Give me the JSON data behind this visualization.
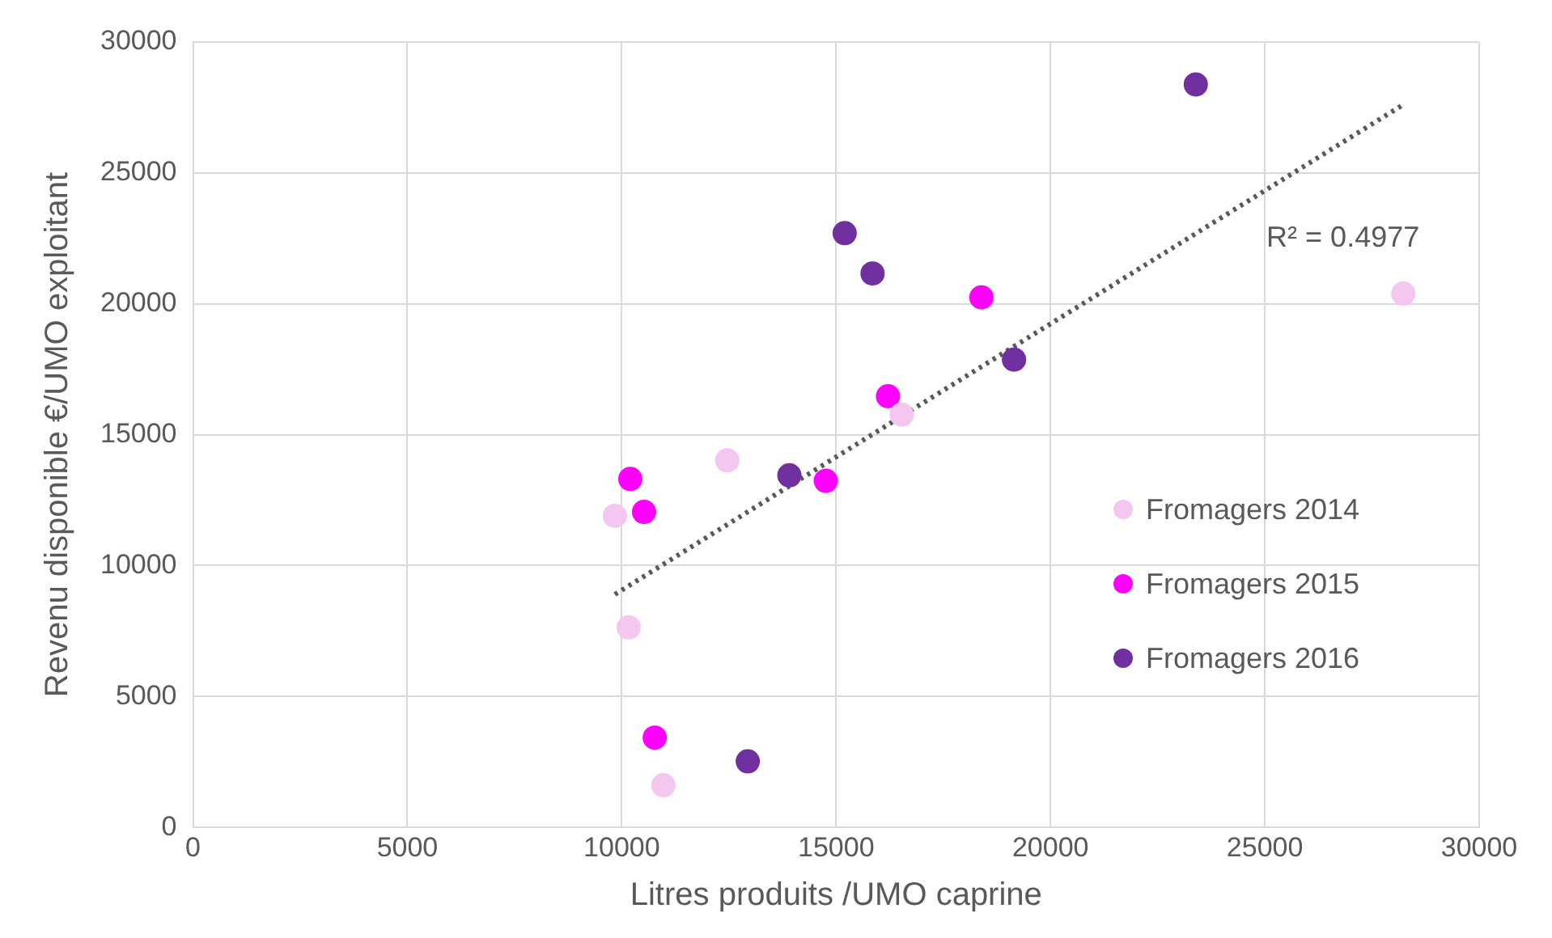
{
  "chart_data": {
    "type": "scatter",
    "xlabel": "Litres produits /UMO caprine",
    "ylabel": "Revenu disponible €/UMO exploitant",
    "xlim": [
      0,
      30000
    ],
    "xticks": [
      0,
      5000,
      10000,
      15000,
      20000,
      25000,
      30000
    ],
    "ylim": [
      0,
      30000
    ],
    "yticks": [
      0,
      5000,
      10000,
      15000,
      20000,
      25000,
      30000
    ],
    "grid": true,
    "legend": "right",
    "marker": "circle",
    "series": [
      {
        "name": "Fromagers 2014",
        "color": "#f5c6f0",
        "x": [
          9840,
          10160,
          10970,
          12460,
          16530,
          28230
        ],
        "values": [
          11900,
          7640,
          1610,
          14020,
          15770,
          20390
        ]
      },
      {
        "name": "Fromagers 2015",
        "color": "#ff00ff",
        "x": [
          10200,
          10520,
          10770,
          14760,
          16210,
          18390
        ],
        "values": [
          13310,
          12050,
          3430,
          13240,
          16470,
          20250
        ]
      },
      {
        "name": "Fromagers 2016",
        "color": "#7030a0",
        "x": [
          12940,
          13910,
          15200,
          15850,
          19150,
          23390
        ],
        "values": [
          2520,
          13450,
          22700,
          21160,
          17870,
          28380
        ]
      },
      {
        "type": "line",
        "color": "#595959",
        "line_style": "dotted",
        "marker": "none",
        "x": [
          9840,
          28230
        ],
        "values": [
          8900,
          27610
        ]
      }
    ],
    "annotations": [
      "R² = 0.4977"
    ]
  }
}
